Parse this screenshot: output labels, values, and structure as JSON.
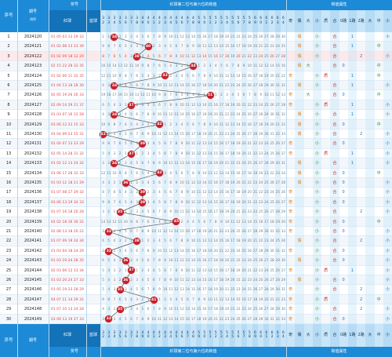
{
  "header": {
    "serial_label": "序号",
    "period_label": "期号",
    "draw_label": "奖号",
    "red_label": "红球",
    "blue_label": "蓝球",
    "chart_title": "红球第二位与第六位的和值",
    "attr_title": "和值属性",
    "filter_label": "排序",
    "attr_cols": [
      "奇",
      "偶",
      "大",
      "小",
      "质",
      "合",
      "0路",
      "1路",
      "2路",
      "大",
      "中",
      "小"
    ]
  },
  "sum_axis": {
    "tens": [
      "3",
      "3",
      "3",
      "3",
      "3",
      "3",
      "3",
      "4",
      "4",
      "4",
      "4",
      "4",
      "4",
      "4",
      "4",
      "4",
      "4",
      "5",
      "5",
      "5",
      "5",
      "5",
      "5",
      "5",
      "5",
      "5",
      "5",
      "6",
      "6",
      "6",
      "6",
      "6",
      "6"
    ],
    "ones": [
      "2",
      "3",
      "4",
      "5",
      "6",
      "7",
      "8",
      "9",
      "0",
      "1",
      "2",
      "3",
      "4",
      "5",
      "6",
      "7",
      "8",
      "9",
      "0",
      "1",
      "2",
      "3",
      "4",
      "5",
      "6",
      "7",
      "8",
      "9",
      "0",
      "1",
      "2",
      "3",
      "4"
    ]
  },
  "rows": [
    {
      "serial": "1",
      "period": "2024120",
      "reds": "01 05 03 13 29 33",
      "sum": "34"
    },
    {
      "serial": "2",
      "period": "2024121",
      "reds": "01 02 08 13 23 39",
      "sum": "40"
    },
    {
      "serial": "3",
      "period": "2024122",
      "reds": "01 02 09 18 12 29",
      "sum": "38"
    },
    {
      "serial": "4",
      "period": "2024123",
      "reds": "02 15 22 28 33 35",
      "sum": "48"
    },
    {
      "serial": "5",
      "period": "2024124",
      "reds": "01 02 06 11 32 35",
      "sum": "43"
    },
    {
      "serial": "6",
      "period": "2024125",
      "reds": "01 04 13 18 28 30",
      "sum": "34"
    },
    {
      "serial": "7",
      "period": "2024126",
      "reds": "02 05 19 26 26 33",
      "sum": "51"
    },
    {
      "serial": "8",
      "period": "2024127",
      "reds": "02 09 14 29 21 37",
      "sum": "37"
    },
    {
      "serial": "9",
      "period": "2024128",
      "reds": "01 03 07 16 12 28",
      "sum": "34"
    },
    {
      "serial": "10",
      "period": "2024129",
      "reds": "03 06 12 23 15 33",
      "sum": "42"
    },
    {
      "serial": "11",
      "period": "2024130",
      "reds": "03 04 09 23 15 31",
      "sum": "32"
    },
    {
      "serial": "12",
      "period": "2024131",
      "reds": "01 04 07 13 23 29",
      "sum": "39"
    },
    {
      "serial": "13",
      "period": "2024132",
      "reds": "02 05 14 28 31 32",
      "sum": "37"
    },
    {
      "serial": "14",
      "period": "2024133",
      "reds": "01 02 12 13 24 32",
      "sum": "34"
    },
    {
      "serial": "15",
      "period": "2024134",
      "reds": "03 06 17 28 32 33",
      "sum": "42"
    },
    {
      "serial": "16",
      "period": "2024135",
      "reds": "01 03 12 18 21 29",
      "sum": "36"
    },
    {
      "serial": "17",
      "period": "2024136",
      "reds": "01 07 08 17 29 32",
      "sum": "39"
    },
    {
      "serial": "18",
      "period": "2024137",
      "reds": "03 06 13 19 34 33",
      "sum": "39"
    },
    {
      "serial": "19",
      "period": "2024138",
      "reds": "01 07 16 18 20 28",
      "sum": "35"
    },
    {
      "serial": "20",
      "period": "2024139",
      "reds": "02 02 18 16 30 31",
      "sum": "45"
    },
    {
      "serial": "21",
      "period": "2024140",
      "reds": "02 08 13 18 20 22",
      "sum": "33"
    },
    {
      "serial": "22",
      "period": "2024141",
      "reds": "01 07 09 19 24 34",
      "sum": "38"
    },
    {
      "serial": "23",
      "period": "2024142",
      "reds": "01 03 04 18 24 29",
      "sum": "33"
    },
    {
      "serial": "24",
      "period": "2024143",
      "reds": "01 03 19 24 28 35",
      "sum": "36"
    },
    {
      "serial": "25",
      "period": "2024144",
      "reds": "02 03 06 12 13 34",
      "sum": "37"
    },
    {
      "serial": "26",
      "period": "2024145",
      "reds": "01 03 20 24 27 33",
      "sum": "36"
    },
    {
      "serial": "27",
      "period": "2024146",
      "reds": "01 05 19 23 28 29",
      "sum": "35"
    },
    {
      "serial": "28",
      "period": "2024147",
      "reds": "04 07 11 14 29 31",
      "sum": "41"
    },
    {
      "serial": "29",
      "period": "2024148",
      "reds": "01 07 10 13 24 28",
      "sum": "35"
    },
    {
      "serial": "30",
      "period": "2024149",
      "reds": "03 09 13 19 27 33",
      "sum": "33"
    }
  ],
  "colors": {
    "header_blue": "#1c8ad6",
    "sub_blue": "#c9e6f8",
    "ball_red": "#c8202a",
    "line": "#555555"
  }
}
